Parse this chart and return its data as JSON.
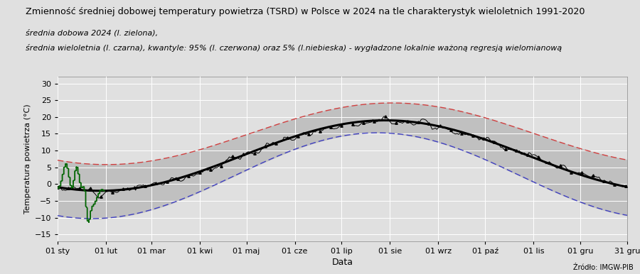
{
  "title": "Zmienność średniej dobowej temperatury powietrza (TSRD) w Polsce w 2024 na tle charakterystyk wieloletnich 1991-2020",
  "subtitle1": "średnia dobowa 2024 (l. zielona),",
  "subtitle2": "średnia wieloletnia (l. czarna), kwantyle: 95% (l. czerwona) oraz 5% (l.niebieska) - wygładzone lokalnie ważoną regresją wielomianową",
  "xlabel": "Data",
  "ylabel": "Temperatura powietrza (°C)",
  "source": "Źródło: IMGW-PIB",
  "xtick_labels": [
    "01 sty",
    "01 lut",
    "01 mar",
    "01 kwi",
    "01 maj",
    "01 cze",
    "01 lip",
    "01 sie",
    "01 wrz",
    "01 paź",
    "01 lis",
    "01 gru",
    "31 gru"
  ],
  "yticks": [
    -15,
    -10,
    -5,
    0,
    5,
    10,
    15,
    20,
    25,
    30
  ],
  "ylim": [
    -17,
    32
  ],
  "background_color": "#e0e0e0",
  "plot_bg_color": "#e0e0e0",
  "grid_color": "#ffffff",
  "fill_color": "#c0c0c0",
  "red_line_color": "#d04040",
  "blue_line_color": "#4040c0",
  "black_line_color": "#000000",
  "green_line_color": "#006400"
}
